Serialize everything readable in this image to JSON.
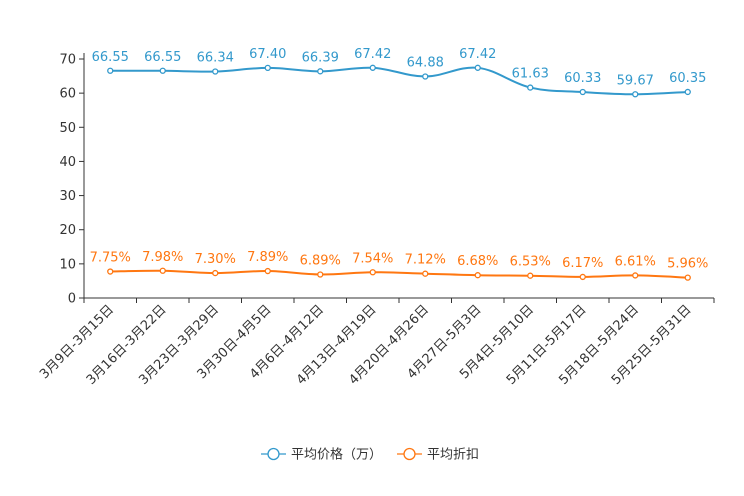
{
  "chart_data": {
    "type": "line",
    "categories": [
      "3月9日-3月15日",
      "3月16日-3月22日",
      "3月23日-3月29日",
      "3月30日-4月5日",
      "4月6日-4月12日",
      "4月13日-4月19日",
      "4月20日-4月26日",
      "4月27日-5月3日",
      "5月4日-5月10日",
      "5月11日-5月17日",
      "5月18日-5月24日",
      "5月25日-5月31日"
    ],
    "series": [
      {
        "name": "平均价格（万）",
        "color": "#3399cc",
        "values": [
          66.55,
          66.55,
          66.34,
          67.4,
          66.39,
          67.42,
          64.88,
          67.42,
          61.63,
          60.33,
          59.67,
          60.35
        ],
        "labels": [
          "66.55",
          "66.55",
          "66.34",
          "67.40",
          "66.39",
          "67.42",
          "64.88",
          "67.42",
          "61.63",
          "60.33",
          "59.67",
          "60.35"
        ]
      },
      {
        "name": "平均折扣",
        "color": "#ff7711",
        "values": [
          7.75,
          7.98,
          7.3,
          7.89,
          6.89,
          7.54,
          7.12,
          6.68,
          6.53,
          6.17,
          6.61,
          5.96
        ],
        "labels": [
          "7.75%",
          "7.98%",
          "7.30%",
          "7.89%",
          "6.89%",
          "7.54%",
          "7.12%",
          "6.68%",
          "6.53%",
          "6.17%",
          "6.61%",
          "5.96%"
        ]
      }
    ],
    "ylim": [
      0,
      70
    ],
    "yticks": [
      0,
      10,
      20,
      30,
      40,
      50,
      60,
      70
    ],
    "legend_position": "bottom-center"
  }
}
